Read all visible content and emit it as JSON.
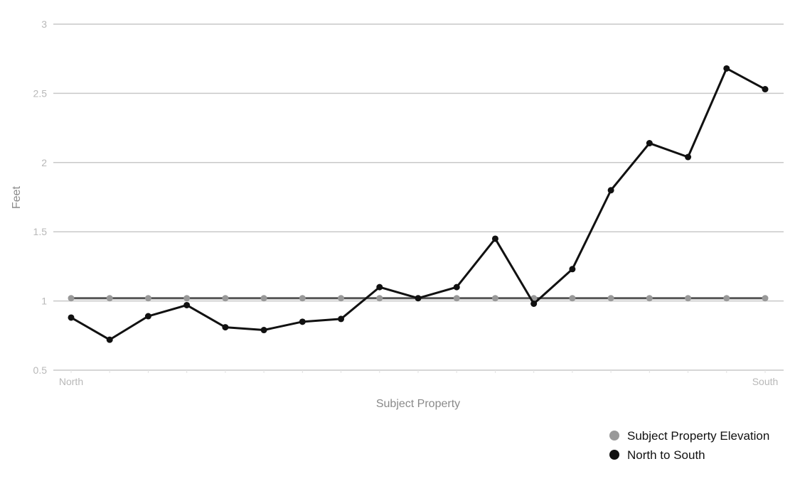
{
  "chart_data": {
    "type": "line",
    "ylabel": "Feet",
    "xlabel": "Subject Property",
    "ylim": [
      0.5,
      3
    ],
    "y_ticks": [
      "0.5",
      "1",
      "1.5",
      "2",
      "2.5",
      "3"
    ],
    "x_tick_labels": {
      "first": "North",
      "last": "South"
    },
    "grid": true,
    "legend_position": "bottom-right",
    "point_count": 19,
    "series": [
      {
        "name": "Subject Property Elevation",
        "color": "#999999",
        "values": [
          1.02,
          1.02,
          1.02,
          1.02,
          1.02,
          1.02,
          1.02,
          1.02,
          1.02,
          1.02,
          1.02,
          1.02,
          1.02,
          1.02,
          1.02,
          1.02,
          1.02,
          1.02,
          1.02
        ]
      },
      {
        "name": "North to South",
        "color": "#111111",
        "values": [
          0.88,
          0.72,
          0.89,
          0.97,
          0.81,
          0.79,
          0.85,
          0.87,
          1.1,
          1.02,
          1.1,
          1.45,
          0.98,
          1.23,
          1.8,
          2.14,
          2.04,
          2.68,
          2.53
        ]
      }
    ]
  }
}
